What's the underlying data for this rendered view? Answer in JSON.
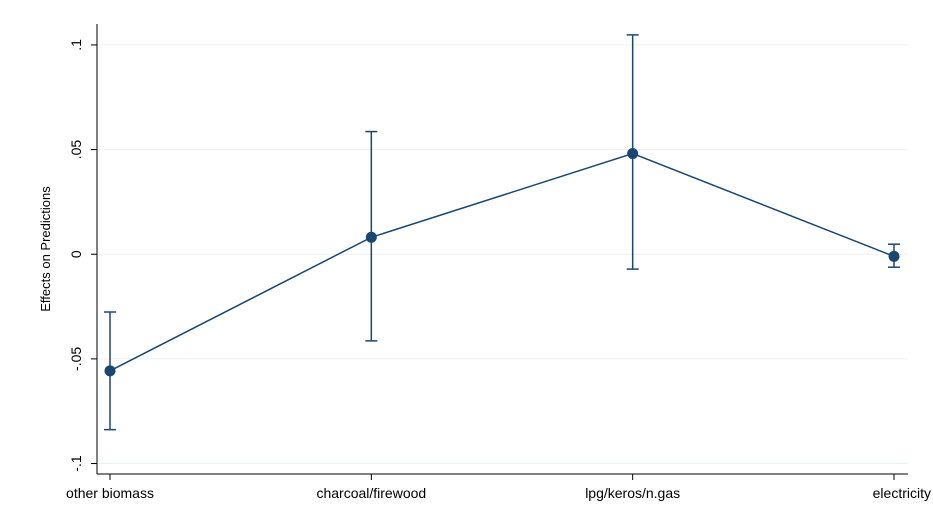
{
  "chart_data": {
    "type": "line",
    "y_label": "Effects on Predictions",
    "categories": [
      "other biomass",
      "charcoal/firewood",
      "lpg/keros/n.gas",
      "electricity"
    ],
    "values": [
      -0.0557,
      0.0081,
      0.0481,
      -0.001
    ],
    "ci_low": [
      -0.0838,
      -0.0414,
      -0.0071,
      -0.0062
    ],
    "ci_high": [
      -0.0276,
      0.0586,
      0.1048,
      0.0048
    ],
    "color": "#1a476f",
    "ylim": [
      -0.105,
      0.11
    ],
    "yticks": [
      {
        "value": -0.1,
        "label": "-.1"
      },
      {
        "value": -0.05,
        "label": "-.05"
      },
      0,
      {
        "value": 0.05,
        "label": ".05"
      },
      {
        "value": 0.1,
        "label": ".1"
      }
    ],
    "grid": true
  }
}
